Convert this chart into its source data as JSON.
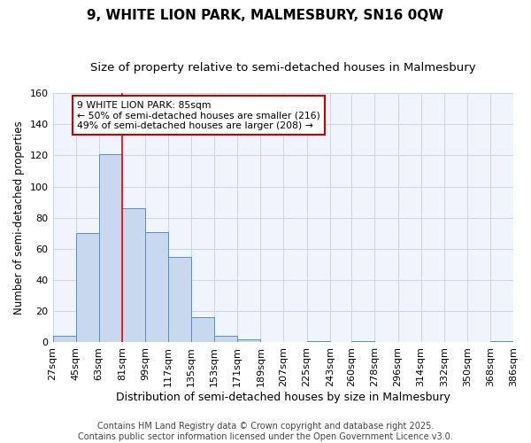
{
  "title": "9, WHITE LION PARK, MALMESBURY, SN16 0QW",
  "subtitle": "Size of property relative to semi-detached houses in Malmesbury",
  "xlabel": "Distribution of semi-detached houses by size in Malmesbury",
  "ylabel": "Number of semi-detached properties",
  "bins": [
    27,
    45,
    63,
    81,
    99,
    117,
    135,
    153,
    171,
    189,
    207,
    225,
    243,
    260,
    278,
    296,
    314,
    332,
    350,
    368,
    386
  ],
  "counts": [
    4,
    70,
    121,
    86,
    71,
    55,
    16,
    4,
    2,
    0,
    0,
    1,
    0,
    1,
    0,
    0,
    0,
    0,
    0,
    1
  ],
  "bar_color": "#c8d8ee",
  "bar_edge_color": "#5090c8",
  "grid_color": "#c8d4e8",
  "background_color": "#ffffff",
  "plot_bg_color": "#f0f4fc",
  "red_line_x": 81,
  "annotation_text": "9 WHITE LION PARK: 85sqm\n← 50% of semi-detached houses are smaller (216)\n49% of semi-detached houses are larger (208) →",
  "annotation_box_color": "#ffffff",
  "annotation_border_color": "#cc0000",
  "ylim": [
    0,
    160
  ],
  "yticks": [
    0,
    20,
    40,
    60,
    80,
    100,
    120,
    140,
    160
  ],
  "footer_text": "Contains HM Land Registry data © Crown copyright and database right 2025.\nContains public sector information licensed under the Open Government Licence v3.0.",
  "title_fontsize": 11,
  "subtitle_fontsize": 9.5,
  "xlabel_fontsize": 9,
  "ylabel_fontsize": 8.5,
  "tick_fontsize": 8,
  "footer_fontsize": 7
}
